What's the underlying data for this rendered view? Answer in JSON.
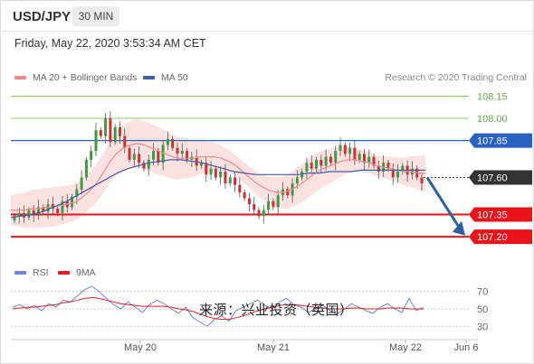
{
  "header": {
    "pair": "USD/JPY",
    "timeframe": "30 MIN",
    "timestamp": "Friday, May 22, 2020 3:53:34 AM CET"
  },
  "legend": {
    "bollinger_label": "MA 20 + Bollinger Bands",
    "bollinger_color": "#f08a8a",
    "ma50_label": "MA 50",
    "ma50_color": "#3d5fa8",
    "credit": "Research © 2020 Trading Central"
  },
  "rsi_legend": {
    "rsi_label": "RSI",
    "rsi_color": "#6e86d6",
    "ma9_label": "9MA",
    "ma9_color": "#e02020"
  },
  "watermark": "来源：兴业投资（英国）",
  "chart_data": {
    "type": "line",
    "ylim": [
      107.06,
      108.22
    ],
    "levels": [
      {
        "value": 108.15,
        "label": "108.15",
        "color": "#8cc968",
        "style": "green"
      },
      {
        "value": 108.0,
        "label": "108.00",
        "color": "#8cc968",
        "style": "green"
      },
      {
        "value": 107.85,
        "label": "107.85",
        "color": "#2a62c4",
        "style": "blue"
      },
      {
        "value": 107.6,
        "label": "107.60",
        "color": "#333333",
        "style": "current"
      },
      {
        "value": 107.35,
        "label": "107.35",
        "color": "#e8131b",
        "style": "red"
      },
      {
        "value": 107.2,
        "label": "107.20",
        "color": "#e8131b",
        "style": "red"
      }
    ],
    "x_ticks": [
      "May 20",
      "May 21",
      "May 22",
      "Jun 6"
    ],
    "candle_close": [
      107.34,
      107.36,
      107.33,
      107.38,
      107.35,
      107.4,
      107.37,
      107.42,
      107.39,
      107.36,
      107.44,
      107.4,
      107.47,
      107.52,
      107.6,
      107.72,
      107.78,
      107.92,
      107.88,
      108.0,
      107.84,
      107.94,
      107.88,
      107.8,
      107.72,
      107.76,
      107.7,
      107.66,
      107.72,
      107.78,
      107.7,
      107.82,
      107.86,
      107.8,
      107.76,
      107.78,
      107.72,
      107.74,
      107.68,
      107.7,
      107.62,
      107.66,
      107.6,
      107.64,
      107.56,
      107.6,
      107.55,
      107.5,
      107.46,
      107.42,
      107.38,
      107.34,
      107.38,
      107.44,
      107.4,
      107.48,
      107.52,
      107.48,
      107.56,
      107.6,
      107.64,
      107.7,
      107.66,
      107.72,
      107.68,
      107.74,
      107.7,
      107.78,
      107.82,
      107.76,
      107.8,
      107.72,
      107.76,
      107.7,
      107.74,
      107.68,
      107.64,
      107.7,
      107.66,
      107.6,
      107.64,
      107.68,
      107.62,
      107.66,
      107.6,
      107.56
    ],
    "ma20": [
      107.38,
      107.38,
      107.38,
      107.39,
      107.39,
      107.4,
      107.4,
      107.41,
      107.42,
      107.43,
      107.46,
      107.5,
      107.55,
      107.62,
      107.7,
      107.76,
      107.8,
      107.82,
      107.83,
      107.82,
      107.8,
      107.78,
      107.76,
      107.74,
      107.73,
      107.73,
      107.73,
      107.74,
      107.74,
      107.74,
      107.73,
      107.71,
      107.68,
      107.64,
      107.6,
      107.56,
      107.53,
      107.51,
      107.5,
      107.5,
      107.52,
      107.55,
      107.58,
      107.62,
      107.65,
      107.67,
      107.69,
      107.71,
      107.72,
      107.72,
      107.71,
      107.7,
      107.68,
      107.67,
      107.66,
      107.65,
      107.64,
      107.64,
      107.63,
      107.63
    ],
    "ma50": [
      107.33,
      107.34,
      107.35,
      107.37,
      107.4,
      107.43,
      107.47,
      107.51,
      107.55,
      107.59,
      107.63,
      107.66,
      107.68,
      107.7,
      107.71,
      107.72,
      107.72,
      107.71,
      107.7,
      107.68,
      107.66,
      107.64,
      107.63,
      107.62,
      107.62,
      107.62,
      107.62,
      107.62,
      107.63,
      107.63,
      107.64,
      107.64,
      107.64,
      107.65,
      107.65,
      107.65,
      107.65,
      107.65,
      107.65,
      107.65
    ],
    "rsi": {
      "levels": [
        70,
        50,
        30
      ],
      "ylim": [
        20,
        80
      ],
      "rsi": [
        52,
        55,
        50,
        54,
        48,
        56,
        52,
        60,
        58,
        65,
        72,
        76,
        70,
        62,
        55,
        50,
        58,
        52,
        46,
        55,
        60,
        56,
        50,
        45,
        52,
        40,
        35,
        30,
        38,
        42,
        36,
        48,
        52,
        56,
        60,
        54,
        50,
        58,
        62,
        55,
        52,
        46,
        50,
        54,
        48,
        44,
        50,
        56,
        52,
        48,
        45,
        52,
        56,
        50,
        46,
        62,
        48,
        52
      ],
      "ma9": [
        50,
        51,
        52,
        52,
        53,
        54,
        55,
        57,
        58,
        60,
        62,
        63,
        62,
        60,
        58,
        56,
        55,
        54,
        53,
        53,
        53,
        53,
        52,
        50,
        49,
        47,
        44,
        41,
        39,
        38,
        38,
        40,
        42,
        45,
        48,
        50,
        52,
        54,
        55,
        55,
        54,
        53,
        52,
        51,
        50,
        50,
        50,
        51,
        51,
        50,
        50,
        50,
        51,
        51,
        51,
        50,
        50,
        50
      ]
    }
  }
}
